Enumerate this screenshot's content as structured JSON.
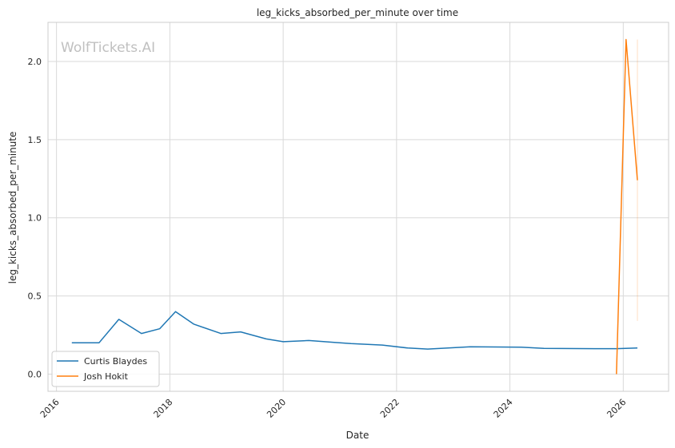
{
  "chart_data": {
    "type": "line",
    "title": "leg_kicks_absorbed_per_minute over time",
    "xlabel": "Date",
    "ylabel": "leg_kicks_absorbed_per_minute",
    "watermark": "WolfTickets.AI",
    "xlim": [
      2015.85,
      2026.8
    ],
    "ylim": [
      -0.11,
      2.25
    ],
    "x_ticks": [
      2016,
      2018,
      2020,
      2022,
      2024,
      2026
    ],
    "x_tick_labels": [
      "2016",
      "2018",
      "2020",
      "2022",
      "2024",
      "2026"
    ],
    "y_ticks": [
      0.0,
      0.5,
      1.0,
      1.5,
      2.0
    ],
    "y_tick_labels": [
      "0.0",
      "0.5",
      "1.0",
      "1.5",
      "2.0"
    ],
    "grid": true,
    "legend_position": "lower-left",
    "series": [
      {
        "name": "Curtis Blaydes",
        "color": "#1f77b4",
        "x": [
          2016.27,
          2016.75,
          2017.1,
          2017.5,
          2017.82,
          2018.1,
          2018.42,
          2018.9,
          2019.25,
          2019.7,
          2020.0,
          2020.45,
          2020.9,
          2021.2,
          2021.75,
          2022.2,
          2022.55,
          2023.3,
          2024.2,
          2024.6,
          2025.5,
          2025.88,
          2026.25
        ],
        "y": [
          0.2,
          0.2,
          0.35,
          0.26,
          0.29,
          0.4,
          0.32,
          0.26,
          0.27,
          0.225,
          0.207,
          0.215,
          0.203,
          0.195,
          0.186,
          0.167,
          0.16,
          0.175,
          0.172,
          0.165,
          0.163,
          0.163,
          0.167
        ]
      },
      {
        "name": "Josh Hokit",
        "color": "#ff7f0e",
        "x": [
          2025.88,
          2026.05,
          2026.25
        ],
        "y": [
          0.0,
          2.14,
          1.24
        ]
      }
    ],
    "error_band": {
      "series": "Josh Hokit",
      "x": 2026.25,
      "y_low": 0.34,
      "y_high": 2.14,
      "color": "#ff7f0e"
    }
  }
}
